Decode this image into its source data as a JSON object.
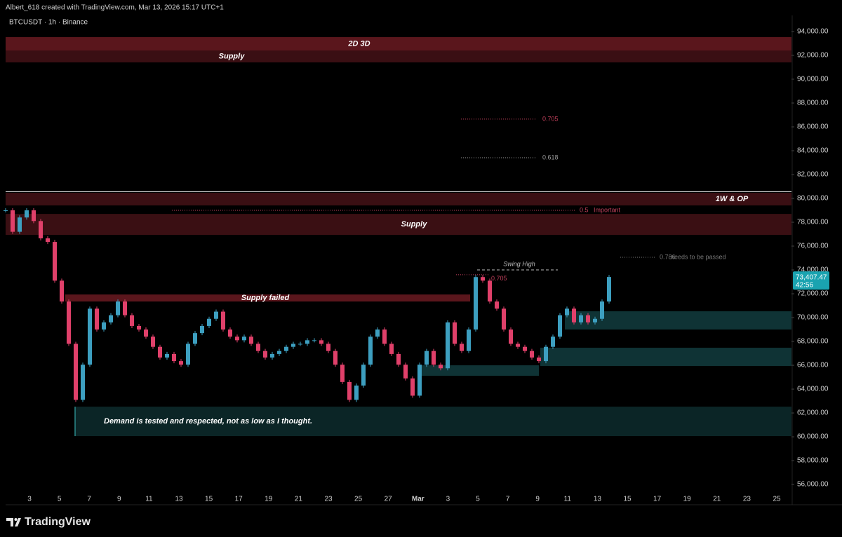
{
  "header": {
    "attribution": "Albert_618 created with TradingView.com, Mar 13, 2026 15:17 UTC+1",
    "symbol": "BTCUSDT · 1h · Binance"
  },
  "footer": {
    "brand": "TradingView"
  },
  "chart_data": {
    "type": "candlestick",
    "values": [
      79000,
      77200,
      78400,
      79000,
      78100,
      76650,
      76350,
      73100,
      71350,
      67800,
      63100,
      66050,
      70750,
      69000,
      69600,
      70200,
      71350,
      70200,
      69300,
      69000,
      68400,
      67550,
      66650,
      66950,
      66350,
      66050,
      67800,
      68700,
      69300,
      69900,
      70500,
      69000,
      68400,
      68100,
      68400,
      67800,
      67200,
      66650,
      66950,
      67200,
      67550,
      67800,
      67800,
      68100,
      68100,
      67800,
      67200,
      66050,
      64600,
      63100,
      64300,
      66050,
      68400,
      69000,
      67800,
      66950,
      66050,
      64900,
      63450,
      66050,
      67200,
      66050,
      65750,
      69600,
      67800,
      67200,
      69000,
      73400,
      73100,
      71350,
      70750,
      69000,
      67800,
      67550,
      67200,
      66650,
      66350,
      67550,
      68400,
      70200,
      70750,
      69600,
      70200,
      69600,
      69900,
      71350,
      73407.47
    ],
    "up_color": "#3d9fc0",
    "down_color": "#e0406a",
    "ylim": [
      54300,
      95350
    ],
    "yticks": [
      {
        "value": 94000,
        "label": "94,000.00"
      },
      {
        "value": 92000,
        "label": "92,000.00"
      },
      {
        "value": 90000,
        "label": "90,000.00"
      },
      {
        "value": 88000,
        "label": "88,000.00"
      },
      {
        "value": 86000,
        "label": "86,000.00"
      },
      {
        "value": 84000,
        "label": "84,000.00"
      },
      {
        "value": 82000,
        "label": "82,000.00"
      },
      {
        "value": 80000,
        "label": "80,000.00"
      },
      {
        "value": 78000,
        "label": "78,000.00"
      },
      {
        "value": 76000,
        "label": "76,000.00"
      },
      {
        "value": 74000,
        "label": "74,000.00"
      },
      {
        "value": 72000,
        "label": "72,000.00"
      },
      {
        "value": 70000,
        "label": "70,000.00"
      },
      {
        "value": 68000,
        "label": "68,000.00"
      },
      {
        "value": 66000,
        "label": "66,000.00"
      },
      {
        "value": 64000,
        "label": "64,000.00"
      },
      {
        "value": 62000,
        "label": "62,000.00"
      },
      {
        "value": 60000,
        "label": "60,000.00"
      },
      {
        "value": 58000,
        "label": "58,000.00"
      },
      {
        "value": 56000,
        "label": "56,000.00"
      }
    ],
    "xticks": [
      "3",
      "5",
      "7",
      "9",
      "11",
      "13",
      "15",
      "17",
      "19",
      "21",
      "23",
      "25",
      "27",
      "Mar",
      "3",
      "5",
      "7",
      "9",
      "11",
      "13",
      "15",
      "17",
      "19",
      "21",
      "23",
      "25"
    ],
    "last_price_label": "73,407.47",
    "countdown": "42:56",
    "zones": [
      {
        "label": "2D 3D",
        "low": 92410,
        "high": 93530,
        "color": "#5a161c"
      },
      {
        "label": "Supply",
        "low": 91410,
        "high": 92410,
        "color": "#3a0f13"
      },
      {
        "label": "1W & OP",
        "low": 79410,
        "high": 80470,
        "color": "#3a0f13"
      },
      {
        "label": "Supply",
        "low": 76940,
        "high": 78700,
        "color": "#3a0f13"
      },
      {
        "label": "Supply failed",
        "low": 71350,
        "high": 71940,
        "color": "#5a161c"
      },
      {
        "label": "Demand is tested and respected, not as low as I thought.",
        "low": 60060,
        "high": 62530,
        "color": "#0b2526"
      },
      {
        "low": 69000,
        "high": 70530,
        "color": "#0f3335"
      },
      {
        "low": 65940,
        "high": 67470,
        "color": "#0f3335"
      },
      {
        "low": 65120,
        "high": 66000,
        "color": "#0f3335"
      }
    ],
    "levels": [
      {
        "label": "0.705",
        "price": 86650,
        "color": "#c2405c"
      },
      {
        "label": "0.618",
        "price": 83410,
        "color": "#9a9a9a"
      },
      {
        "label": "0.5",
        "note": "Important",
        "price": 79000,
        "color": "#c2405c"
      },
      {
        "label": "0.786",
        "note": "needs to be passed",
        "price": 75060,
        "color": "#777777"
      },
      {
        "label": "Swing High",
        "price": 74000,
        "color": "#bbbbbb"
      },
      {
        "label": "0.705",
        "price": 73600,
        "color": "#c2405c"
      }
    ]
  }
}
